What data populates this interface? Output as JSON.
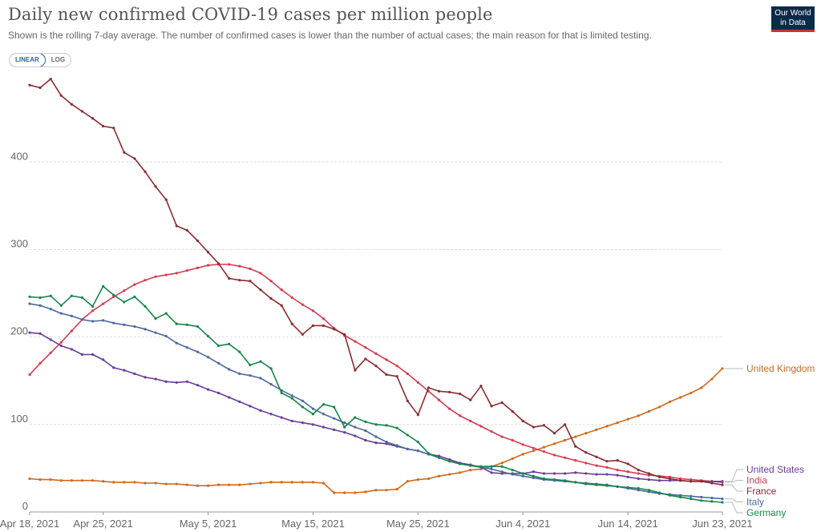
{
  "header": {
    "title": "Daily new confirmed COVID-19 cases per million people",
    "subtitle": "Shown is the rolling 7-day average. The number of confirmed cases is lower than the number of actual cases; the main reason for that is limited testing.",
    "logo_line1": "Our World",
    "logo_line2": "in Data"
  },
  "scale_toggle": {
    "linear_label": "LINEAR",
    "log_label": "LOG",
    "selected": "LINEAR"
  },
  "chart_data": {
    "type": "line",
    "x_range": [
      "2021-04-18",
      "2021-06-23"
    ],
    "x_ticks": [
      "Apr 18, 2021",
      "Apr 25, 2021",
      "May 5, 2021",
      "May 15, 2021",
      "May 25, 2021",
      "Jun 4, 2021",
      "Jun 14, 2021",
      "Jun 23, 2021"
    ],
    "ylim": [
      0,
      500
    ],
    "y_ticks": [
      0,
      100,
      200,
      300,
      400
    ],
    "grid": true,
    "series": [
      {
        "name": "United Kingdom",
        "color": "#ce6a1f",
        "values": [
          38,
          37,
          37,
          36,
          36,
          36,
          36,
          35,
          34,
          34,
          34,
          33,
          33,
          32,
          32,
          31,
          30,
          30,
          31,
          31,
          31,
          32,
          33,
          34,
          34,
          34,
          34,
          34,
          33,
          22,
          22,
          22,
          23,
          25,
          25,
          26,
          35,
          37,
          38,
          41,
          43,
          45,
          48,
          49,
          52,
          56,
          61,
          66,
          70,
          74,
          78,
          82,
          86,
          90,
          94,
          98,
          102,
          106,
          110,
          115,
          120,
          126,
          131,
          136,
          142,
          152,
          164
        ]
      },
      {
        "name": "India",
        "color": "#d73c50",
        "values": [
          157,
          170,
          182,
          194,
          207,
          220,
          230,
          238,
          246,
          253,
          260,
          265,
          269,
          271,
          273,
          276,
          279,
          282,
          283,
          283,
          281,
          278,
          273,
          264,
          254,
          245,
          237,
          230,
          221,
          210,
          202,
          195,
          188,
          181,
          174,
          167,
          158,
          148,
          138,
          128,
          118,
          110,
          104,
          98,
          92,
          86,
          82,
          77,
          73,
          69,
          65,
          62,
          59,
          56,
          53,
          51,
          48,
          46,
          44,
          42,
          41,
          40,
          38,
          37,
          36,
          35,
          34
        ]
      },
      {
        "name": "United States",
        "color": "#6a3d9a",
        "values": [
          205,
          204,
          197,
          190,
          186,
          180,
          180,
          174,
          165,
          162,
          158,
          154,
          152,
          149,
          148,
          149,
          145,
          140,
          136,
          131,
          126,
          121,
          116,
          112,
          108,
          104,
          102,
          100,
          97,
          94,
          91,
          87,
          82,
          79,
          78,
          75,
          72,
          70,
          66,
          64,
          60,
          56,
          54,
          51,
          45,
          44,
          44,
          44,
          46,
          44,
          44,
          44,
          45,
          44,
          43,
          43,
          42,
          40,
          38,
          37,
          36,
          36,
          36,
          35,
          35,
          35,
          35
        ]
      },
      {
        "name": "France",
        "color": "#8a2d31",
        "values": [
          488,
          485,
          495,
          476,
          466,
          458,
          450,
          441,
          439,
          411,
          404,
          389,
          372,
          357,
          327,
          322,
          310,
          297,
          284,
          267,
          265,
          264,
          254,
          244,
          236,
          215,
          203,
          213,
          213,
          209,
          203,
          162,
          175,
          167,
          157,
          155,
          127,
          111,
          142,
          138,
          137,
          135,
          128,
          144,
          121,
          125,
          115,
          104,
          97,
          99,
          90,
          100,
          75,
          68,
          63,
          58,
          59,
          55,
          48,
          44,
          40,
          38,
          36,
          35,
          35,
          33,
          31
        ]
      },
      {
        "name": "Italy",
        "color": "#4c6a9c",
        "values": [
          238,
          236,
          232,
          227,
          224,
          220,
          218,
          219,
          216,
          214,
          212,
          209,
          205,
          201,
          193,
          188,
          183,
          177,
          170,
          163,
          158,
          156,
          153,
          146,
          139,
          133,
          127,
          118,
          112,
          107,
          102,
          97,
          93,
          86,
          80,
          76,
          72,
          70,
          66,
          62,
          58,
          55,
          53,
          51,
          49,
          46,
          43,
          41,
          39,
          37,
          36,
          35,
          34,
          33,
          32,
          31,
          29,
          27,
          25,
          23,
          21,
          20,
          19,
          18,
          17,
          16,
          15
        ]
      },
      {
        "name": "Germany",
        "color": "#18864b",
        "values": [
          246,
          245,
          247,
          236,
          247,
          245,
          235,
          258,
          248,
          240,
          246,
          235,
          221,
          227,
          215,
          214,
          212,
          201,
          190,
          192,
          183,
          168,
          172,
          164,
          136,
          130,
          120,
          112,
          123,
          120,
          97,
          108,
          103,
          100,
          99,
          96,
          88,
          80,
          67,
          62,
          58,
          55,
          53,
          52,
          52,
          52,
          48,
          44,
          41,
          38,
          37,
          36,
          34,
          32,
          31,
          30,
          29,
          28,
          27,
          25,
          22,
          19,
          17,
          15,
          13,
          12,
          11
        ]
      }
    ]
  }
}
